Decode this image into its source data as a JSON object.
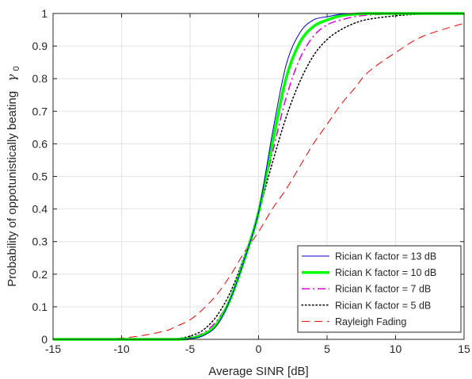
{
  "chart_data": {
    "type": "line",
    "title": "",
    "xlabel": "Average SINR [dB]",
    "ylabel": "Probability of oppotunistically beating",
    "ylabel_symbol": "γ",
    "ylabel_subscript": "0",
    "xlim": [
      -15,
      15
    ],
    "ylim": [
      0,
      1
    ],
    "xticks": [
      -15,
      -10,
      -5,
      0,
      5,
      10,
      15
    ],
    "yticks": [
      0,
      0.1,
      0.2,
      0.3,
      0.4,
      0.5,
      0.6,
      0.7,
      0.8,
      0.9,
      1
    ],
    "xtick_labels": [
      "-15",
      "-10",
      "-5",
      "0",
      "5",
      "10",
      "15"
    ],
    "ytick_labels": [
      "0",
      "0.1",
      "0.2",
      "0.3",
      "0.4",
      "0.5",
      "0.6",
      "0.7",
      "0.8",
      "0.9",
      "1"
    ],
    "grid": true,
    "legend_position": "bottom-right",
    "x": [
      -15,
      -10,
      -7,
      -6,
      -5,
      -4,
      -3,
      -2,
      -1,
      0,
      1,
      2,
      3,
      4,
      5,
      6,
      7,
      8,
      10,
      12,
      15
    ],
    "series": [
      {
        "name": "Rician K factor = 13 dB",
        "color": "#0000cc",
        "dash": "solid",
        "width": 1,
        "values": [
          0,
          0,
          0,
          0,
          0.002,
          0.012,
          0.045,
          0.13,
          0.25,
          0.39,
          0.63,
          0.84,
          0.94,
          0.98,
          0.99,
          0.998,
          1,
          1,
          1,
          1,
          1
        ]
      },
      {
        "name": "Rician K factor = 10 dB",
        "color": "#00ff00",
        "dash": "solid",
        "width": 3.5,
        "values": [
          0,
          0,
          0,
          0,
          0.003,
          0.015,
          0.05,
          0.13,
          0.25,
          0.39,
          0.6,
          0.8,
          0.91,
          0.96,
          0.98,
          0.993,
          0.998,
          1,
          1,
          1,
          1
        ]
      },
      {
        "name": "Rician K factor = 7 dB",
        "color": "#dd00dd",
        "dash": "dashdot",
        "width": 1.5,
        "values": [
          0,
          0,
          0,
          0.001,
          0.006,
          0.02,
          0.06,
          0.13,
          0.25,
          0.39,
          0.57,
          0.74,
          0.86,
          0.93,
          0.965,
          0.98,
          0.99,
          0.995,
          0.999,
          1,
          1
        ]
      },
      {
        "name": "Rician K factor = 5 dB",
        "color": "#000000",
        "dash": "dotted",
        "width": 1.5,
        "values": [
          0,
          0,
          0,
          0.002,
          0.01,
          0.03,
          0.075,
          0.15,
          0.26,
          0.39,
          0.54,
          0.68,
          0.79,
          0.87,
          0.92,
          0.95,
          0.97,
          0.982,
          0.993,
          0.998,
          1
        ]
      },
      {
        "name": "Rayleigh Fading",
        "color": "#ee0000",
        "dash": "dashed",
        "width": 1,
        "values": [
          0,
          0.004,
          0.024,
          0.04,
          0.06,
          0.095,
          0.14,
          0.2,
          0.27,
          0.33,
          0.4,
          0.46,
          0.53,
          0.6,
          0.66,
          0.72,
          0.77,
          0.82,
          0.88,
          0.93,
          0.97
        ]
      }
    ]
  }
}
